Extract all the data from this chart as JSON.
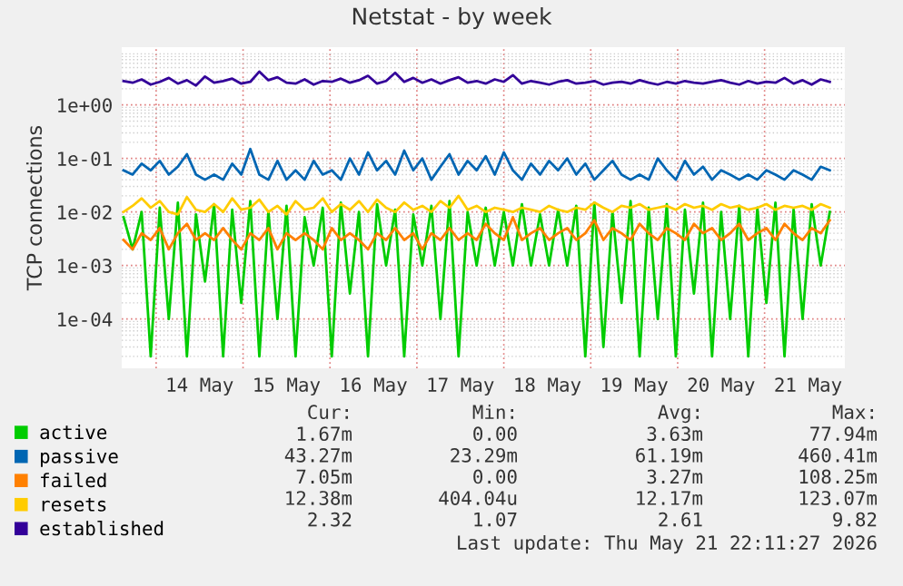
{
  "chart_data": {
    "type": "line",
    "title": "Netstat - by week",
    "ylabel": "TCP connections",
    "log": "y",
    "grid": true,
    "legend": "bottom",
    "x": [
      "2026-05-13T15:00",
      "2026-05-13T17:30",
      "2026-05-13T20:00",
      "2026-05-13T22:30",
      "2026-05-14T01:00",
      "2026-05-14T03:30",
      "2026-05-14T06:00",
      "2026-05-14T08:30",
      "2026-05-14T11:00",
      "2026-05-14T13:30",
      "2026-05-14T16:00",
      "2026-05-14T18:30",
      "2026-05-14T21:00",
      "2026-05-14T23:30",
      "2026-05-15T02:00",
      "2026-05-15T04:30",
      "2026-05-15T07:00",
      "2026-05-15T09:30",
      "2026-05-15T12:00",
      "2026-05-15T14:30",
      "2026-05-15T17:00",
      "2026-05-15T19:30",
      "2026-05-15T22:00",
      "2026-05-16T00:30",
      "2026-05-16T03:00",
      "2026-05-16T05:30",
      "2026-05-16T08:00",
      "2026-05-16T10:30",
      "2026-05-16T13:00",
      "2026-05-16T15:30",
      "2026-05-16T18:00",
      "2026-05-16T20:30",
      "2026-05-16T23:00",
      "2026-05-17T01:30",
      "2026-05-17T04:00",
      "2026-05-17T06:30",
      "2026-05-17T09:00",
      "2026-05-17T11:30",
      "2026-05-17T14:00",
      "2026-05-17T16:30",
      "2026-05-17T19:00",
      "2026-05-17T21:30",
      "2026-05-18T00:00",
      "2026-05-18T02:30",
      "2026-05-18T05:00",
      "2026-05-18T07:30",
      "2026-05-18T10:00",
      "2026-05-18T12:30",
      "2026-05-18T15:00",
      "2026-05-18T17:30",
      "2026-05-18T20:00",
      "2026-05-18T22:30",
      "2026-05-19T01:00",
      "2026-05-19T03:30",
      "2026-05-19T06:00",
      "2026-05-19T08:30",
      "2026-05-19T11:00",
      "2026-05-19T13:30",
      "2026-05-19T16:00",
      "2026-05-19T18:30",
      "2026-05-19T21:00",
      "2026-05-19T23:30",
      "2026-05-20T02:00",
      "2026-05-20T04:30",
      "2026-05-20T07:00",
      "2026-05-20T09:30",
      "2026-05-20T12:00",
      "2026-05-20T14:30",
      "2026-05-20T17:00",
      "2026-05-20T19:30",
      "2026-05-20T22:00",
      "2026-05-21T00:30",
      "2026-05-21T03:00",
      "2026-05-21T05:30",
      "2026-05-21T08:00",
      "2026-05-21T10:30",
      "2026-05-21T13:00",
      "2026-05-21T15:30",
      "2026-05-21T18:00"
    ],
    "xlim": [
      "2026-05-13T14:30",
      "2026-05-21T22:10"
    ],
    "xticks": [
      {
        "value": "2026-05-14T12:00",
        "label": "14 May"
      },
      {
        "value": "2026-05-15T12:00",
        "label": "15 May"
      },
      {
        "value": "2026-05-16T12:00",
        "label": "16 May"
      },
      {
        "value": "2026-05-17T12:00",
        "label": "17 May"
      },
      {
        "value": "2026-05-18T12:00",
        "label": "18 May"
      },
      {
        "value": "2026-05-19T12:00",
        "label": "19 May"
      },
      {
        "value": "2026-05-20T12:00",
        "label": "20 May"
      },
      {
        "value": "2026-05-21T12:00",
        "label": "21 May"
      }
    ],
    "ylim": [
      1.2e-05,
      12
    ],
    "yticks": [
      {
        "value": 0.0001,
        "label": "1e-04"
      },
      {
        "value": 0.001,
        "label": "1e-03"
      },
      {
        "value": 0.01,
        "label": "1e-02"
      },
      {
        "value": 0.1,
        "label": "1e-01"
      },
      {
        "value": 1,
        "label": "1e+00"
      }
    ],
    "series": [
      {
        "name": "active",
        "color": "#00cc00",
        "values": [
          0.008,
          0.002,
          0.01,
          2e-05,
          0.012,
          0.0001,
          0.015,
          2e-05,
          0.009,
          0.0005,
          0.014,
          2e-05,
          0.011,
          0.0002,
          0.016,
          2e-05,
          0.01,
          0.0001,
          0.013,
          2e-05,
          0.008,
          0.001,
          0.012,
          2e-05,
          0.015,
          0.0003,
          0.01,
          2e-05,
          0.014,
          0.001,
          0.011,
          2e-05,
          0.009,
          0.001,
          0.013,
          0.0001,
          0.016,
          2e-05,
          0.01,
          0.001,
          0.012,
          0.001,
          0.01,
          0.001,
          0.014,
          0.001,
          0.009,
          0.001,
          0.011,
          0.001,
          0.013,
          2e-05,
          0.015,
          3e-05,
          0.01,
          0.0002,
          0.016,
          2e-05,
          0.012,
          0.0001,
          0.014,
          2e-05,
          0.011,
          0.0003,
          0.015,
          2e-05,
          0.01,
          0.0001,
          0.013,
          2e-05,
          0.012,
          0.0002,
          0.015,
          2e-05,
          0.011,
          0.0001,
          0.014,
          0.001,
          0.01
        ]
      },
      {
        "name": "passive",
        "color": "#0066b3",
        "values": [
          0.06,
          0.05,
          0.08,
          0.06,
          0.09,
          0.05,
          0.07,
          0.12,
          0.05,
          0.04,
          0.05,
          0.04,
          0.08,
          0.05,
          0.15,
          0.05,
          0.04,
          0.09,
          0.04,
          0.06,
          0.04,
          0.09,
          0.05,
          0.06,
          0.04,
          0.1,
          0.05,
          0.13,
          0.06,
          0.09,
          0.05,
          0.14,
          0.06,
          0.1,
          0.04,
          0.07,
          0.12,
          0.05,
          0.09,
          0.06,
          0.11,
          0.05,
          0.13,
          0.06,
          0.04,
          0.08,
          0.05,
          0.09,
          0.06,
          0.1,
          0.05,
          0.08,
          0.04,
          0.06,
          0.09,
          0.05,
          0.04,
          0.05,
          0.04,
          0.1,
          0.06,
          0.04,
          0.09,
          0.05,
          0.07,
          0.04,
          0.06,
          0.05,
          0.04,
          0.05,
          0.04,
          0.06,
          0.05,
          0.04,
          0.06,
          0.05,
          0.04,
          0.07,
          0.06
        ]
      },
      {
        "name": "failed",
        "color": "#ff8000",
        "values": [
          0.003,
          0.002,
          0.004,
          0.003,
          0.005,
          0.002,
          0.004,
          0.006,
          0.003,
          0.004,
          0.003,
          0.005,
          0.003,
          0.002,
          0.004,
          0.003,
          0.005,
          0.002,
          0.004,
          0.003,
          0.004,
          0.003,
          0.002,
          0.005,
          0.003,
          0.004,
          0.003,
          0.002,
          0.004,
          0.003,
          0.005,
          0.003,
          0.004,
          0.002,
          0.004,
          0.003,
          0.005,
          0.003,
          0.004,
          0.003,
          0.006,
          0.004,
          0.003,
          0.008,
          0.003,
          0.004,
          0.005,
          0.003,
          0.004,
          0.005,
          0.003,
          0.004,
          0.007,
          0.003,
          0.005,
          0.004,
          0.003,
          0.006,
          0.004,
          0.003,
          0.005,
          0.004,
          0.003,
          0.006,
          0.004,
          0.005,
          0.003,
          0.004,
          0.006,
          0.003,
          0.004,
          0.005,
          0.003,
          0.006,
          0.004,
          0.003,
          0.005,
          0.004,
          0.007
        ]
      },
      {
        "name": "resets",
        "color": "#ffcc00",
        "values": [
          0.01,
          0.013,
          0.018,
          0.012,
          0.016,
          0.01,
          0.009,
          0.019,
          0.011,
          0.01,
          0.014,
          0.01,
          0.018,
          0.011,
          0.012,
          0.017,
          0.01,
          0.013,
          0.009,
          0.016,
          0.011,
          0.012,
          0.018,
          0.01,
          0.014,
          0.011,
          0.016,
          0.01,
          0.017,
          0.012,
          0.01,
          0.015,
          0.011,
          0.013,
          0.01,
          0.016,
          0.012,
          0.02,
          0.011,
          0.013,
          0.01,
          0.012,
          0.011,
          0.01,
          0.012,
          0.011,
          0.01,
          0.013,
          0.011,
          0.01,
          0.012,
          0.011,
          0.015,
          0.012,
          0.01,
          0.013,
          0.012,
          0.014,
          0.011,
          0.012,
          0.013,
          0.011,
          0.014,
          0.012,
          0.013,
          0.011,
          0.014,
          0.012,
          0.013,
          0.011,
          0.012,
          0.014,
          0.011,
          0.013,
          0.012,
          0.013,
          0.011,
          0.014,
          0.012
        ]
      },
      {
        "name": "established",
        "color": "#330099",
        "values": [
          2.8,
          2.6,
          3.0,
          2.4,
          2.7,
          3.2,
          2.5,
          2.9,
          2.3,
          3.4,
          2.6,
          2.8,
          3.1,
          2.5,
          2.7,
          4.2,
          2.9,
          3.3,
          2.6,
          2.5,
          3.0,
          2.4,
          2.8,
          2.7,
          3.1,
          2.6,
          2.9,
          3.5,
          2.5,
          2.8,
          4.0,
          2.7,
          3.2,
          2.6,
          3.0,
          2.5,
          2.9,
          3.3,
          2.6,
          2.8,
          2.5,
          3.0,
          2.7,
          3.6,
          2.5,
          2.8,
          2.6,
          2.4,
          2.7,
          2.9,
          2.5,
          2.6,
          2.8,
          2.4,
          2.6,
          2.7,
          2.5,
          2.9,
          2.6,
          2.4,
          2.7,
          2.5,
          2.8,
          2.6,
          2.5,
          2.7,
          2.9,
          2.6,
          2.4,
          2.8,
          2.5,
          2.7,
          2.6,
          3.2,
          2.5,
          2.9,
          2.4,
          3.0,
          2.7
        ]
      }
    ],
    "annotations": [
      "Cur:",
      "Min:",
      "Avg:",
      "Max:",
      "1.67m",
      "0.00",
      "3.63m",
      "77.94m",
      "43.27m",
      "23.29m",
      "61.19m",
      "460.41m",
      "7.05m",
      "0.00",
      "3.27m",
      "108.25m",
      "12.38m",
      "404.04u",
      "12.17m",
      "123.07m",
      "2.32",
      "1.07",
      "2.61",
      "9.82",
      "Last update: Thu May 21 22:11:27 2026"
    ]
  }
}
